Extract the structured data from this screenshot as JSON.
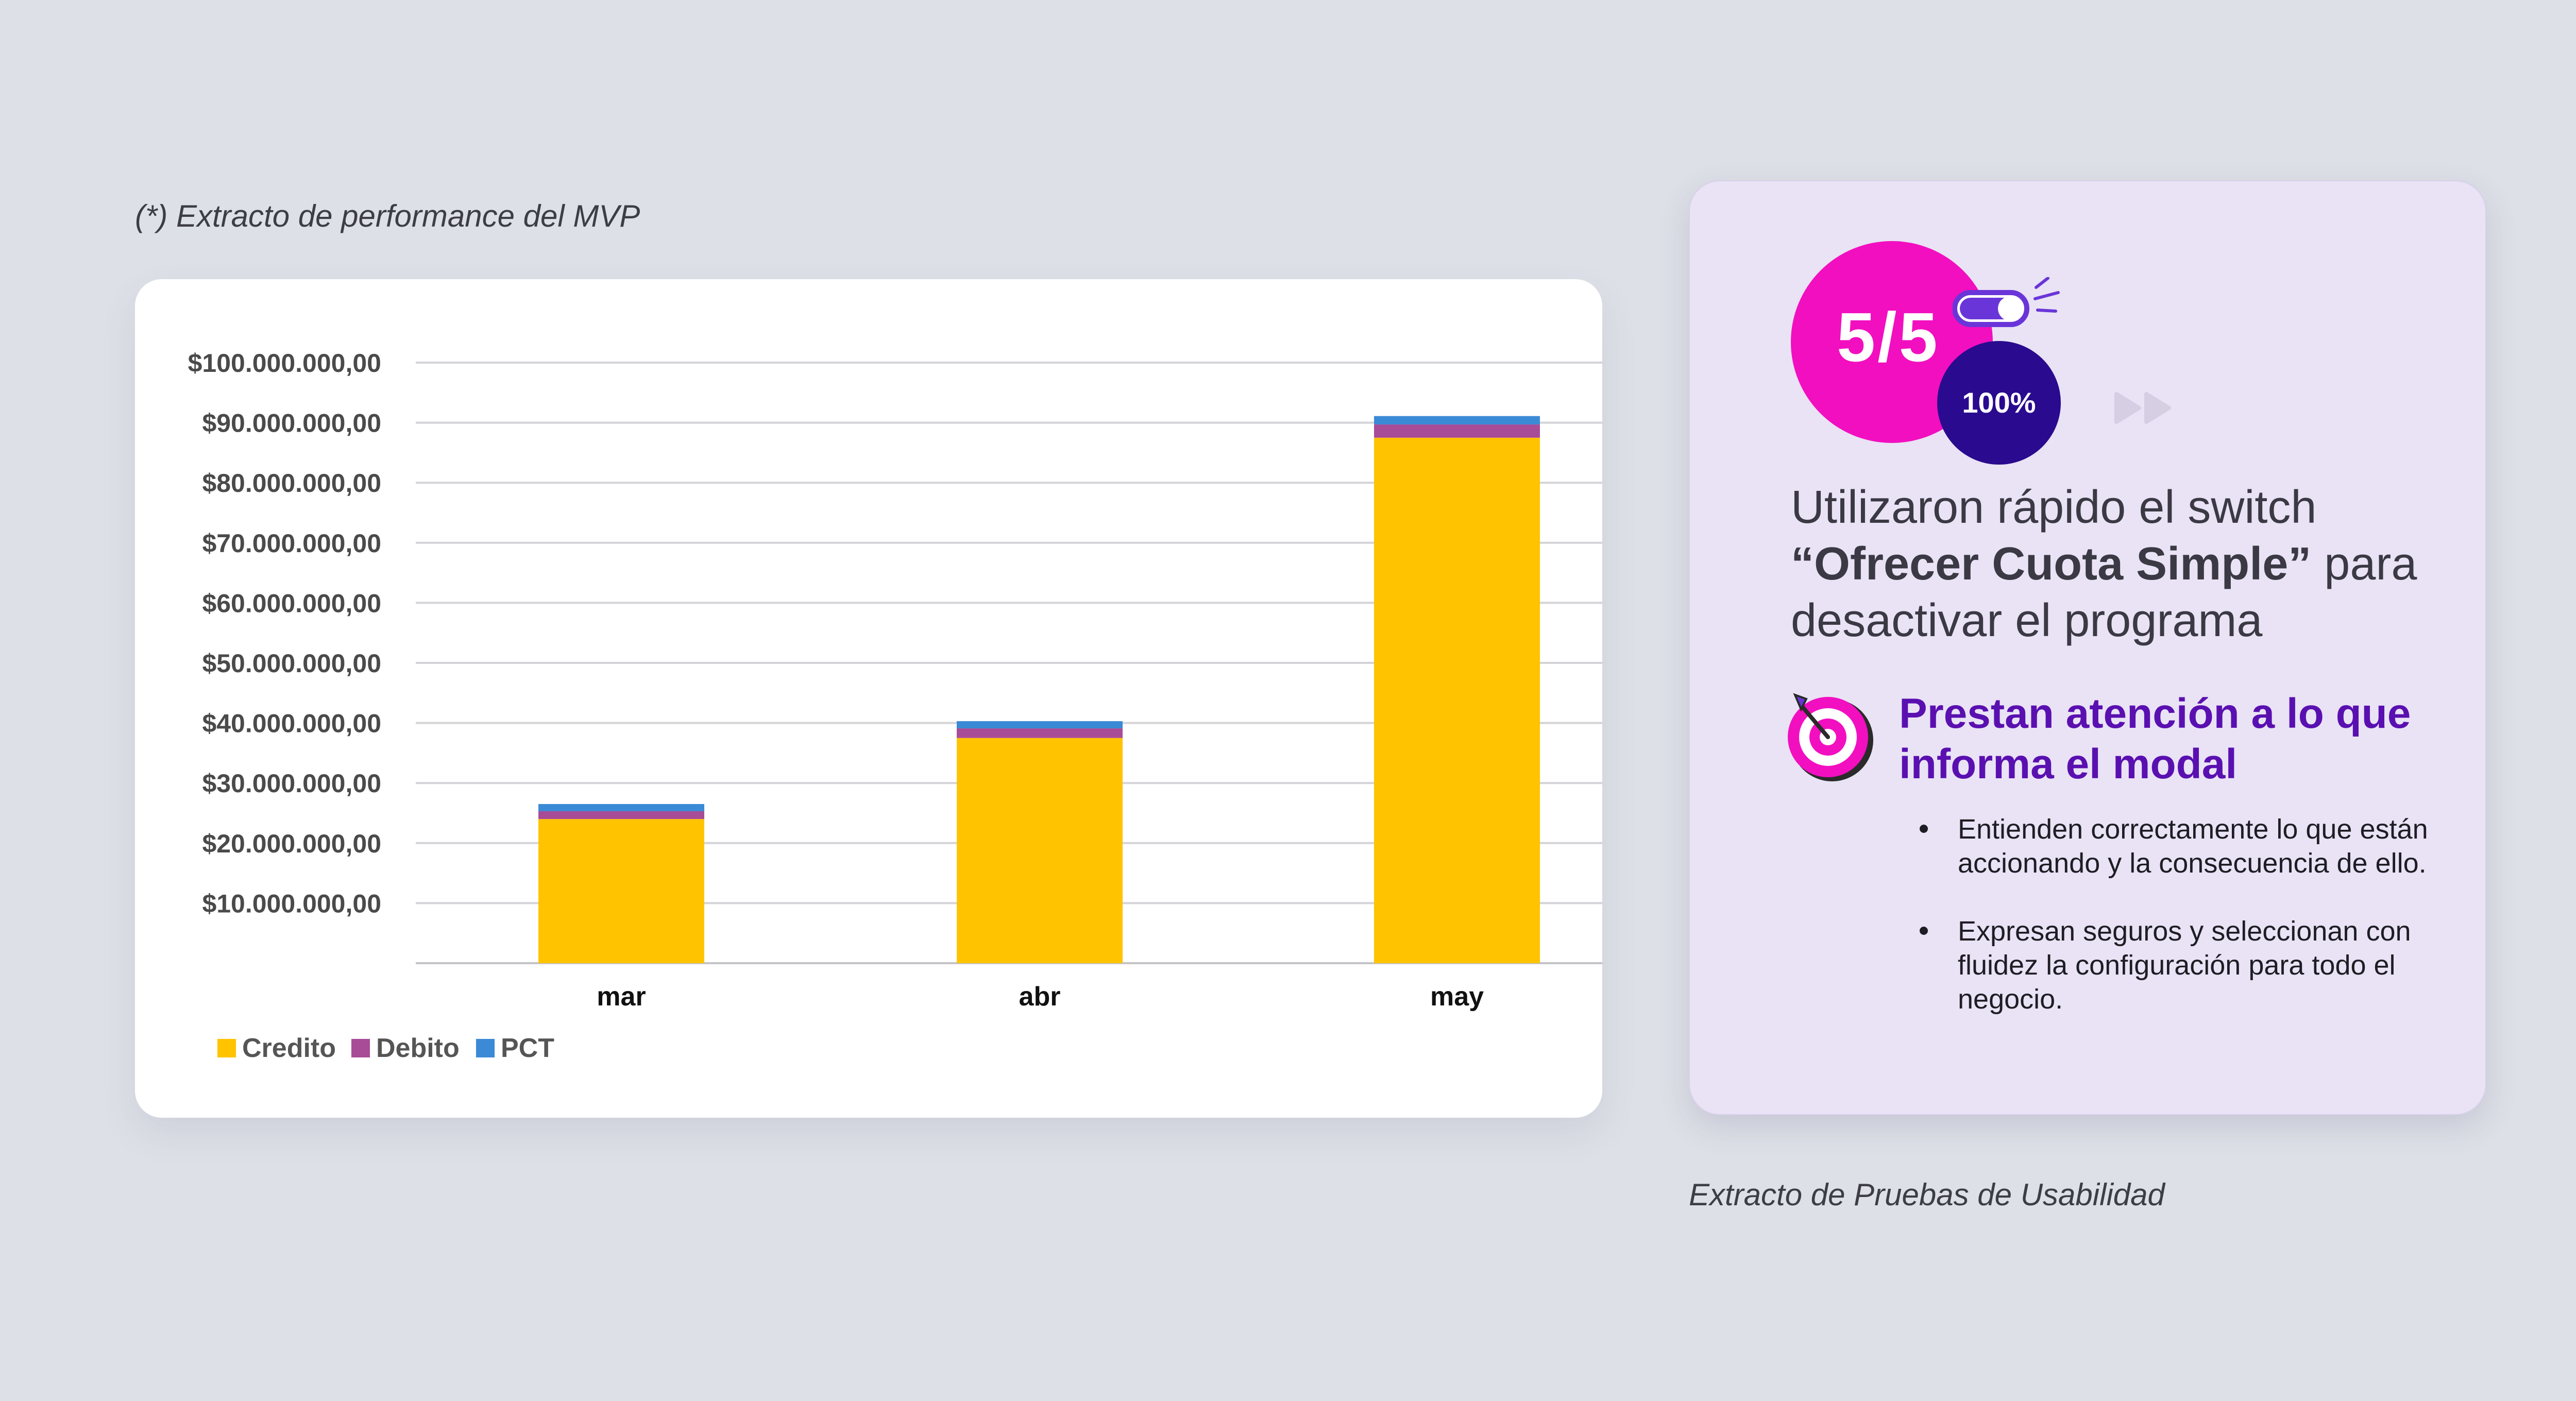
{
  "captions": {
    "left": "(*) Extracto de performance del MVP",
    "right": "Extracto de Pruebas de Usabilidad"
  },
  "chart_data": {
    "type": "bar",
    "stacked": true,
    "title": "",
    "xlabel": "",
    "ylabel": "",
    "categories": [
      "mar",
      "abr",
      "may"
    ],
    "series": [
      {
        "name": "Credito",
        "color": "#ffc300",
        "values": [
          24000000,
          37500000,
          87500000
        ]
      },
      {
        "name": "Debito",
        "color": "#a84c97",
        "values": [
          1300000,
          1600000,
          2200000
        ]
      },
      {
        "name": "PCT",
        "color": "#3b8ad6",
        "values": [
          1200000,
          1200000,
          1400000
        ]
      }
    ],
    "ylim": [
      0,
      100000000
    ],
    "y_ticks": [
      {
        "value": 10000000,
        "label": "$10.000.000,00"
      },
      {
        "value": 20000000,
        "label": "$20.000.000,00"
      },
      {
        "value": 30000000,
        "label": "$30.000.000,00"
      },
      {
        "value": 40000000,
        "label": "$40.000.000,00"
      },
      {
        "value": 50000000,
        "label": "$50.000.000,00"
      },
      {
        "value": 60000000,
        "label": "$60.000.000,00"
      },
      {
        "value": 70000000,
        "label": "$70.000.000,00"
      },
      {
        "value": 80000000,
        "label": "$80.000.000,00"
      },
      {
        "value": 90000000,
        "label": "$90.000.000,00"
      },
      {
        "value": 100000000,
        "label": "$100.000.000,00"
      }
    ],
    "grid": true,
    "legend_position": "bottom-left"
  },
  "usability": {
    "score": "5/5",
    "percent": "100%",
    "headline_pre": "Utilizaron rápido el switch ",
    "headline_bold": "“Ofrecer Cuota Simple”",
    "headline_post": " para desactivar el programa",
    "subhead": "Prestan atención a lo que informa el modal",
    "bullets": [
      "Entienden correctamente lo que están accionando y la consecuencia de ello.",
      "Expresan seguros y seleccionan con fluidez la configuración para todo el negocio."
    ],
    "icons": [
      "toggle-switch-icon",
      "play-forward-icon",
      "target-icon"
    ],
    "colors": {
      "pink": "#f20fc0",
      "navy": "#2a0a8e",
      "purple": "#5a10b0",
      "card": "#e9e3f5"
    }
  }
}
